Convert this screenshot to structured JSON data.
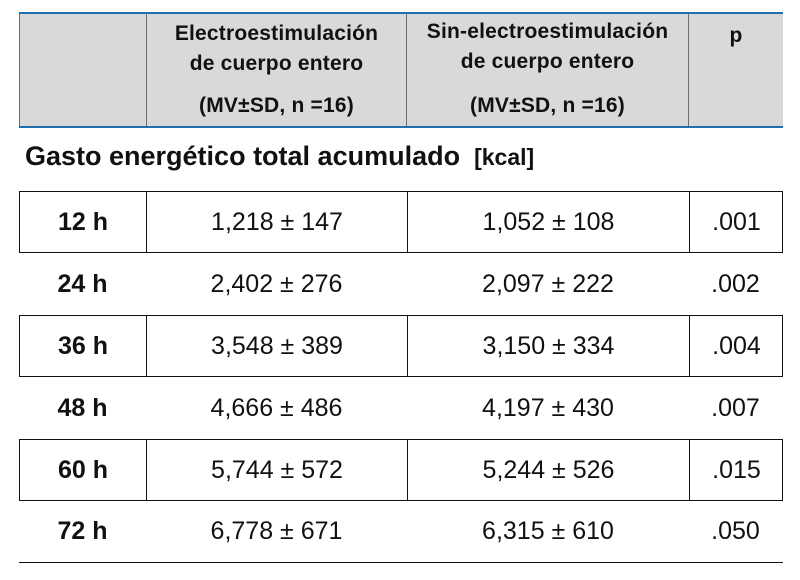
{
  "header": {
    "group1": {
      "line1": "Electroestimulación",
      "line2": "de cuerpo entero",
      "line3": "(MV±SD, n =16)"
    },
    "group2": {
      "line1": "Sin-electroestimulación",
      "line2": "de cuerpo entero",
      "line3": "(MV±SD, n =16)"
    },
    "p_label": "p"
  },
  "section": {
    "title": "Gasto energético total acumulado",
    "unit": "[kcal]"
  },
  "rows": [
    {
      "time": "12 h",
      "ems": "1,218 ± 147",
      "no_ems": "1,052 ± 108",
      "p": ".001"
    },
    {
      "time": "24 h",
      "ems": "2,402 ± 276",
      "no_ems": "2,097 ± 222",
      "p": ".002"
    },
    {
      "time": "36 h",
      "ems": "3,548 ± 389",
      "no_ems": "3,150 ± 334",
      "p": ".004"
    },
    {
      "time": "48 h",
      "ems": "4,666 ± 486",
      "no_ems": "4,197 ± 430",
      "p": ".007"
    },
    {
      "time": "60 h",
      "ems": "5,744 ± 572",
      "no_ems": "5,244 ± 526",
      "p": ".015"
    },
    {
      "time": "72 h",
      "ems": "6,778 ± 671",
      "no_ems": "6,315 ± 610",
      "p": ".050"
    }
  ]
}
